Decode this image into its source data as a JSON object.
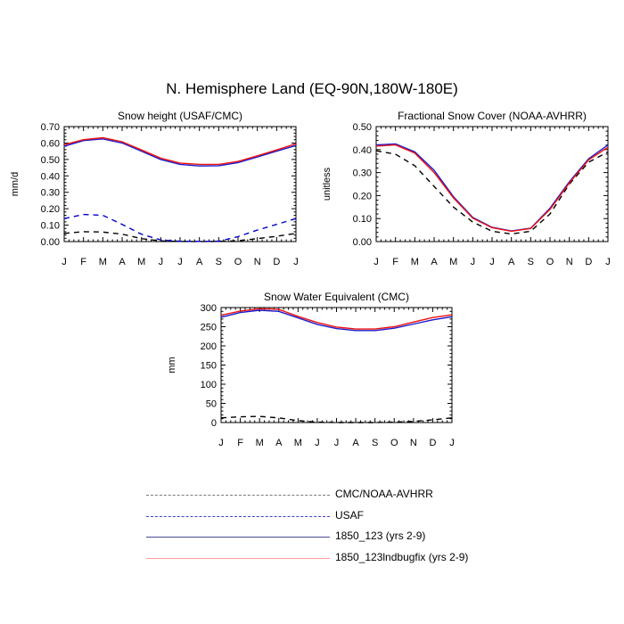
{
  "title": "N. Hemisphere Land (EQ-90N,180W-180E)",
  "colors": {
    "cmc": "#000000",
    "usaf": "#0000cc",
    "run1": "#1a1acc",
    "run2": "#ee1111",
    "run1_legend": "#4a4a9a",
    "run2_legend": "#ff9a9a"
  },
  "legend": [
    {
      "label": "CMC/NOAA-AVHRR",
      "color": "#7a7a7a",
      "style": "dashed"
    },
    {
      "label": "USAF",
      "color": "#4040cc",
      "style": "dashed"
    },
    {
      "label": "1850_123 (yrs 2-9)",
      "color": "#4a4a9a",
      "style": "solid"
    },
    {
      "label": "1850_123lndbugfix (yrs 2-9)",
      "color": "#ff9a9a",
      "style": "solid"
    }
  ],
  "chart_data": [
    {
      "type": "line",
      "title": "Snow height (USAF/CMC)",
      "xlabel": "",
      "ylabel": "mm/d",
      "x_ticks": [
        "J",
        "F",
        "M",
        "A",
        "M",
        "J",
        "J",
        "A",
        "S",
        "O",
        "N",
        "D",
        "J"
      ],
      "y_ticks": [
        "0.00",
        "0.10",
        "0.20",
        "0.30",
        "0.40",
        "0.50",
        "0.60",
        "0.70"
      ],
      "ylim": [
        0,
        0.7
      ],
      "series": [
        {
          "name": "CMC/NOAA-AVHRR",
          "style": "dashed",
          "color": "#000000",
          "values": [
            0.05,
            0.06,
            0.058,
            0.045,
            0.018,
            0.004,
            0.001,
            0.0,
            0.001,
            0.005,
            0.018,
            0.032,
            0.05
          ]
        },
        {
          "name": "USAF",
          "style": "dashed",
          "color": "#0000cc",
          "values": [
            0.14,
            0.165,
            0.16,
            0.105,
            0.045,
            0.01,
            0.002,
            0.001,
            0.002,
            0.03,
            0.07,
            0.105,
            0.14
          ]
        },
        {
          "name": "1850_123 (yrs 2-9)",
          "style": "solid",
          "color": "#1a1acc",
          "values": [
            0.58,
            0.615,
            0.625,
            0.6,
            0.55,
            0.5,
            0.47,
            0.46,
            0.462,
            0.48,
            0.515,
            0.55,
            0.585
          ]
        },
        {
          "name": "1850_123lndbugfix (yrs 2-9)",
          "style": "solid",
          "color": "#ee1111",
          "values": [
            0.59,
            0.62,
            0.632,
            0.608,
            0.558,
            0.508,
            0.478,
            0.47,
            0.47,
            0.488,
            0.522,
            0.558,
            0.595
          ]
        }
      ]
    },
    {
      "type": "line",
      "title": "Fractional Snow Cover (NOAA-AVHRR)",
      "xlabel": "",
      "ylabel": "unitless",
      "x_ticks": [
        "J",
        "F",
        "M",
        "A",
        "M",
        "J",
        "J",
        "A",
        "S",
        "O",
        "N",
        "D",
        "J"
      ],
      "y_ticks": [
        "0.00",
        "0.10",
        "0.20",
        "0.30",
        "0.40",
        "0.50"
      ],
      "ylim": [
        0,
        0.5
      ],
      "series": [
        {
          "name": "CMC/NOAA-AVHRR",
          "style": "dashed",
          "color": "#000000",
          "values": [
            0.395,
            0.38,
            0.33,
            0.24,
            0.15,
            0.085,
            0.045,
            0.033,
            0.045,
            0.12,
            0.25,
            0.345,
            0.39
          ]
        },
        {
          "name": "1850_123 (yrs 2-9)",
          "style": "solid",
          "color": "#1a1acc",
          "values": [
            0.42,
            0.425,
            0.39,
            0.31,
            0.195,
            0.105,
            0.062,
            0.046,
            0.058,
            0.145,
            0.26,
            0.36,
            0.42
          ]
        },
        {
          "name": "1850_123lndbugfix (yrs 2-9)",
          "style": "solid",
          "color": "#ee1111",
          "values": [
            0.415,
            0.42,
            0.385,
            0.3,
            0.19,
            0.102,
            0.06,
            0.045,
            0.057,
            0.14,
            0.255,
            0.355,
            0.41
          ]
        }
      ]
    },
    {
      "type": "line",
      "title": "Snow Water Equivalent (CMC)",
      "xlabel": "",
      "ylabel": "mm",
      "x_ticks": [
        "J",
        "F",
        "M",
        "A",
        "M",
        "J",
        "J",
        "A",
        "S",
        "O",
        "N",
        "D",
        "J"
      ],
      "y_ticks": [
        "0",
        "50",
        "100",
        "150",
        "200",
        "250",
        "300"
      ],
      "ylim": [
        0,
        300
      ],
      "series": [
        {
          "name": "CMC/NOAA-AVHRR",
          "style": "dashed",
          "color": "#000000",
          "values": [
            12,
            15,
            16,
            12,
            5,
            1,
            0,
            0,
            0,
            1,
            3,
            7,
            12
          ]
        },
        {
          "name": "1850_123 (yrs 2-9)",
          "style": "solid",
          "color": "#1a1acc",
          "values": [
            275,
            287,
            293,
            290,
            273,
            256,
            245,
            240,
            240,
            246,
            257,
            268,
            276
          ]
        },
        {
          "name": "1850_123lndbugfix (yrs 2-9)",
          "style": "solid",
          "color": "#ee1111",
          "values": [
            280,
            291,
            297,
            295,
            277,
            261,
            249,
            244,
            244,
            250,
            262,
            274,
            281
          ]
        }
      ]
    }
  ]
}
